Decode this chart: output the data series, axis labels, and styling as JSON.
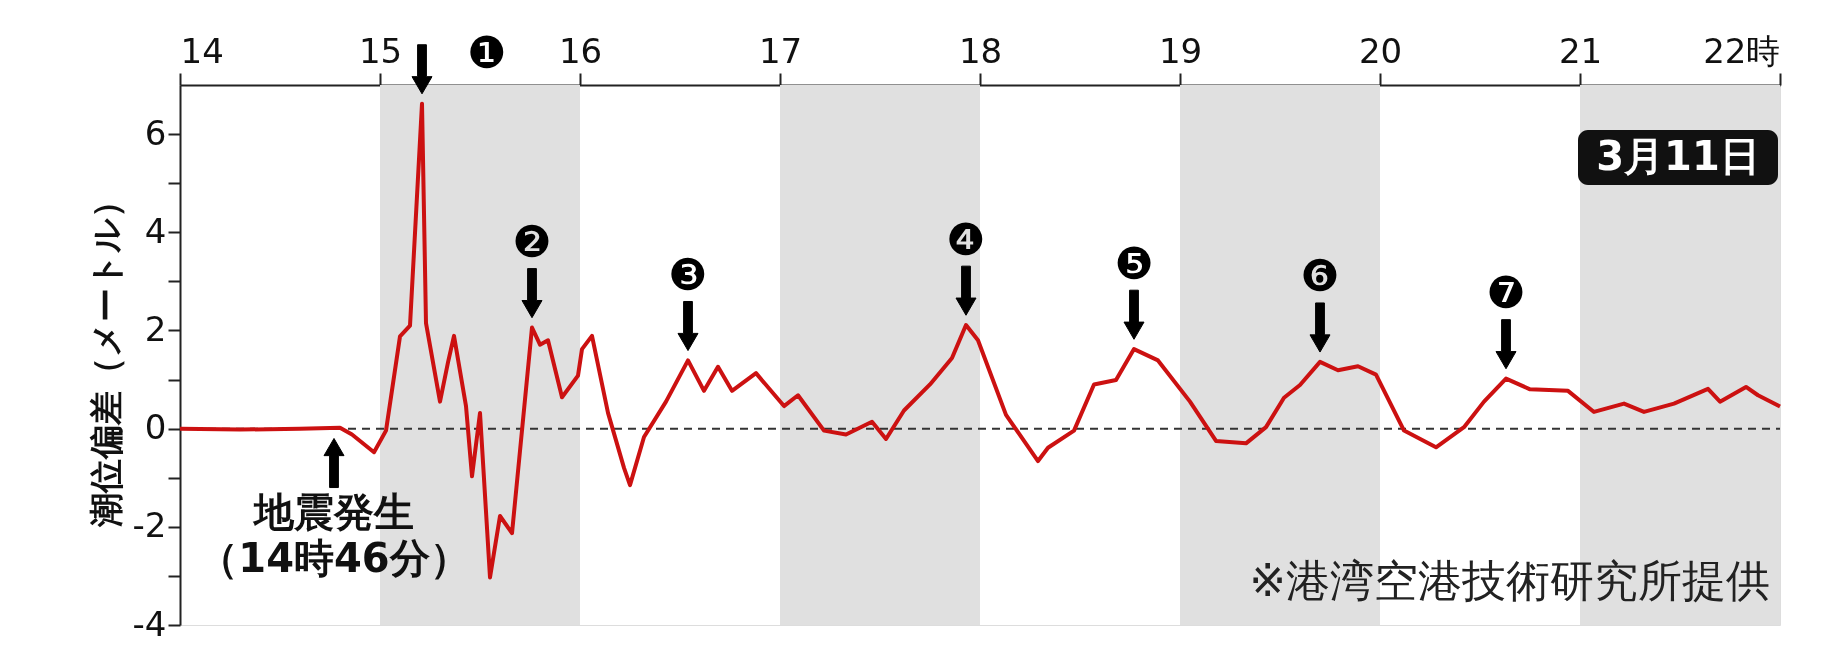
{
  "chart_data": {
    "type": "line",
    "ylabel": "潮位偏差（メートル）",
    "x": [
      14.0,
      14.3,
      14.6,
      14.8,
      14.86,
      14.97,
      15.03,
      15.1,
      15.15,
      15.21,
      15.23,
      15.3,
      15.34,
      15.37,
      15.43,
      15.46,
      15.5,
      15.55,
      15.6,
      15.66,
      15.76,
      15.8,
      15.84,
      15.91,
      15.99,
      16.01,
      16.06,
      16.14,
      16.22,
      16.25,
      16.32,
      16.43,
      16.54,
      16.62,
      16.69,
      16.76,
      16.88,
      17.02,
      17.09,
      17.22,
      17.33,
      17.46,
      17.53,
      17.62,
      17.75,
      17.86,
      17.93,
      17.99,
      18.13,
      18.29,
      18.34,
      18.47,
      18.57,
      18.68,
      18.77,
      18.89,
      19.05,
      19.18,
      19.33,
      19.43,
      19.52,
      19.6,
      19.7,
      19.79,
      19.89,
      19.98,
      20.12,
      20.28,
      20.42,
      20.52,
      20.63,
      20.75,
      20.94,
      21.07,
      21.22,
      21.32,
      21.47,
      21.64,
      21.7,
      21.83,
      21.89,
      22.0
    ],
    "series": [
      {
        "color": "#cc1111",
        "values": [
          0.0,
          -0.02,
          0.0,
          0.02,
          -0.12,
          -0.48,
          -0.04,
          1.88,
          2.1,
          6.62,
          2.15,
          0.55,
          1.35,
          1.89,
          0.46,
          -0.97,
          0.32,
          -3.03,
          -1.78,
          -2.13,
          2.06,
          1.71,
          1.8,
          0.64,
          1.08,
          1.62,
          1.89,
          0.32,
          -0.8,
          -1.15,
          -0.17,
          0.55,
          1.39,
          0.77,
          1.26,
          0.77,
          1.13,
          0.46,
          0.68,
          -0.04,
          -0.12,
          0.14,
          -0.21,
          0.37,
          0.9,
          1.44,
          2.11,
          1.8,
          0.28,
          -0.66,
          -0.39,
          -0.04,
          0.9,
          0.99,
          1.62,
          1.39,
          0.55,
          -0.25,
          -0.3,
          0.03,
          0.63,
          0.89,
          1.36,
          1.19,
          1.27,
          1.1,
          -0.04,
          -0.38,
          0.03,
          0.55,
          1.02,
          0.8,
          0.77,
          0.34,
          0.51,
          0.34,
          0.51,
          0.81,
          0.55,
          0.85,
          0.68,
          0.45
        ]
      }
    ],
    "xlim": [
      14,
      22
    ],
    "xticks": [
      14,
      15,
      16,
      17,
      18,
      19,
      20,
      21,
      {
        "value": 22,
        "label": "22時"
      }
    ],
    "ylim": [
      -4,
      7
    ],
    "yticks": [
      -4,
      {
        "value": -3,
        "label": null
      },
      -2,
      {
        "value": -1,
        "label": null
      },
      0,
      {
        "value": 1,
        "label": null
      },
      2,
      {
        "value": 3,
        "label": null
      },
      4,
      {
        "value": 5,
        "label": null
      },
      6
    ],
    "grid": false,
    "marker": "none",
    "line_style": "solid",
    "ref_lines": [
      {
        "axis": "y",
        "value": 0,
        "color": "#333333",
        "line_style": "dashed"
      }
    ],
    "bands": [
      {
        "axis": "x",
        "from": 15,
        "to": 16,
        "color": "#e0e0e0"
      },
      {
        "axis": "x",
        "from": 17,
        "to": 18,
        "color": "#e0e0e0"
      },
      {
        "axis": "x",
        "from": 19,
        "to": 20,
        "color": "#e0e0e0"
      },
      {
        "axis": "x",
        "from": 21,
        "to": 22,
        "color": "#e0e0e0"
      }
    ],
    "annotations": [
      {
        "text": "❶",
        "x": 15.21,
        "y": 6.62
      },
      {
        "text": "❷",
        "x": 15.76,
        "y": 2.06
      },
      {
        "text": "❸",
        "x": 16.54,
        "y": 1.39
      },
      {
        "text": "❹",
        "x": 17.93,
        "y": 2.11
      },
      {
        "text": "❺",
        "x": 18.77,
        "y": 1.62
      },
      {
        "text": "❻",
        "x": 19.7,
        "y": 1.36
      },
      {
        "text": "❼",
        "x": 20.63,
        "y": 1.02
      },
      {
        "text": "地震発生（14時46分）",
        "x": 14.77,
        "y": 0
      },
      "3月11日",
      "※港湾空港技術研究所提供"
    ]
  }
}
